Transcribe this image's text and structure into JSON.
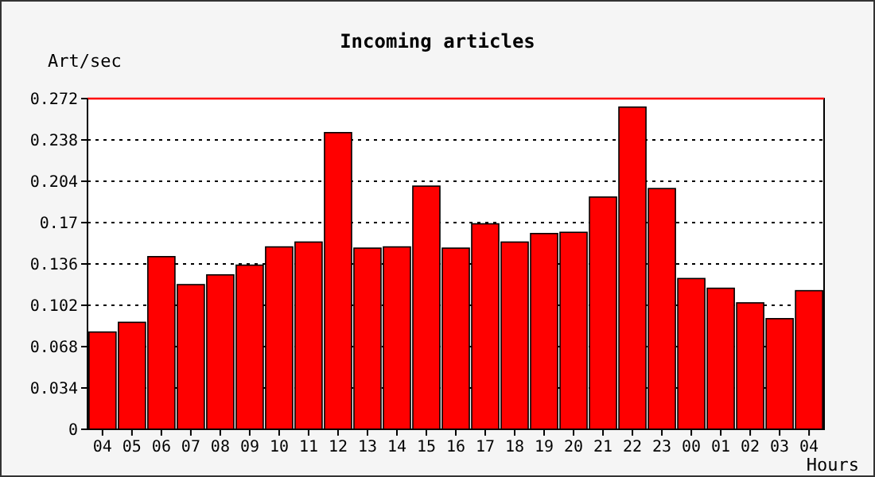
{
  "chart_data": {
    "type": "bar",
    "title": "Incoming articles",
    "ylabel": "Art/sec",
    "xlabel": "Hours",
    "categories": [
      "04",
      "05",
      "06",
      "07",
      "08",
      "09",
      "10",
      "11",
      "12",
      "13",
      "14",
      "15",
      "16",
      "17",
      "18",
      "19",
      "20",
      "21",
      "22",
      "23",
      "00",
      "01",
      "02",
      "03",
      "04"
    ],
    "values": [
      0.08,
      0.088,
      0.142,
      0.119,
      0.127,
      0.135,
      0.15,
      0.154,
      0.244,
      0.149,
      0.15,
      0.2,
      0.149,
      0.169,
      0.154,
      0.161,
      0.162,
      0.191,
      0.265,
      0.198,
      0.124,
      0.116,
      0.104,
      0.091,
      0.114
    ],
    "color": "#ff0000",
    "ylim": [
      0,
      0.272
    ],
    "yticks": [
      0,
      0.034,
      0.068,
      0.102,
      0.136,
      0.17,
      0.204,
      0.238,
      0.272
    ],
    "grid": "y",
    "line_style": "dotted",
    "ref_lines": [
      {
        "axis": "y",
        "value": 0.272,
        "color": "#ff0000"
      }
    ]
  }
}
